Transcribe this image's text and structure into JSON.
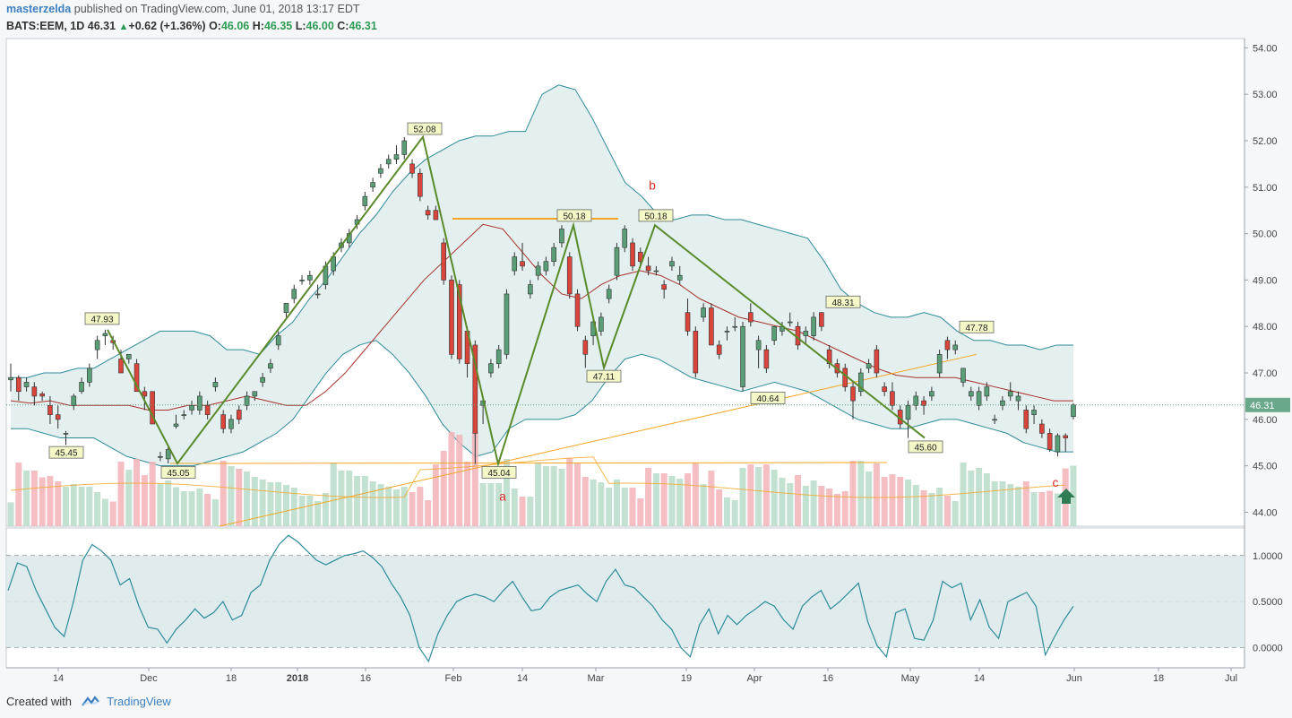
{
  "header": {
    "author": "masterzelda",
    "published": "published on TradingView.com, June 01, 2018 13:17 EDT",
    "symbol": "BATS:EEM, 1D",
    "last": "46.31",
    "change": "+0.62 (+1.36%)",
    "o_label": "O:",
    "o": "46.06",
    "h_label": "H:",
    "h": "46.35",
    "l_label": "L:",
    "l": "46.00",
    "c_label": "C:",
    "c": "46.31"
  },
  "footer": {
    "created": "Created with",
    "brand": "TradingView"
  },
  "colors": {
    "up": "#5a9e78",
    "down": "#d9453b",
    "band": "#2e8c9a",
    "band_fill": "#dbe9ea",
    "basis": "#a8322c",
    "pattern": "#5a8a2a",
    "orange": "#f5a623",
    "vol_up": "#b7dcc9",
    "vol_down": "#f2b3b8",
    "last_tag": "#6aa88a"
  },
  "chart_data": [
    {
      "type": "candlestick",
      "title": "BATS:EEM, 1D",
      "y_axis_ticks": [
        "54.00",
        "53.00",
        "52.00",
        "51.00",
        "50.00",
        "49.00",
        "48.00",
        "47.00",
        "46.00",
        "45.00",
        "44.00"
      ],
      "ylim": [
        43.7,
        54.2
      ],
      "x_axis_ticks": [
        "14",
        "Dec",
        "18",
        "2018",
        "16",
        "Feb",
        "14",
        "Mar",
        "19",
        "Apr",
        "16",
        "May",
        "14",
        "Jun",
        "18",
        "Jul"
      ],
      "last_price_label": "46.31",
      "annotations_price": [
        "47.93",
        "45.45",
        "45.05",
        "52.08",
        "45.04",
        "50.18",
        "47.11",
        "50.18",
        "40.64",
        "48.31",
        "45.60",
        "47.78"
      ],
      "wave_labels": [
        "a",
        "b",
        "c"
      ],
      "ohlc": [
        [
          46.85,
          47.2,
          46.6,
          46.9
        ],
        [
          46.9,
          46.95,
          46.4,
          46.6
        ],
        [
          46.7,
          46.9,
          46.6,
          46.8
        ],
        [
          46.7,
          46.8,
          46.3,
          46.5
        ],
        [
          46.55,
          46.6,
          46.4,
          46.5
        ],
        [
          46.3,
          46.5,
          45.9,
          46.1
        ],
        [
          46.1,
          46.3,
          45.8,
          46.0
        ],
        [
          45.7,
          45.75,
          45.45,
          45.7
        ],
        [
          46.3,
          46.55,
          46.2,
          46.5
        ],
        [
          46.6,
          46.9,
          46.55,
          46.8
        ],
        [
          46.8,
          47.2,
          46.7,
          47.1
        ],
        [
          47.5,
          47.8,
          47.3,
          47.7
        ],
        [
          47.8,
          47.93,
          47.6,
          47.85
        ],
        [
          47.7,
          47.8,
          47.5,
          47.65
        ],
        [
          47.3,
          47.5,
          47.0,
          47.0
        ],
        [
          47.3,
          47.4,
          47.2,
          47.4
        ],
        [
          47.2,
          47.3,
          46.6,
          46.6
        ],
        [
          46.6,
          46.7,
          46.2,
          46.5
        ],
        [
          46.6,
          46.6,
          45.9,
          45.9
        ],
        [
          45.2,
          45.3,
          45.1,
          45.2
        ],
        [
          45.15,
          45.4,
          45.05,
          45.35
        ],
        [
          45.85,
          46.1,
          45.8,
          45.9
        ],
        [
          46.1,
          46.2,
          46.0,
          46.1
        ],
        [
          46.2,
          46.4,
          46.1,
          46.3
        ],
        [
          46.2,
          46.6,
          46.1,
          46.5
        ],
        [
          46.3,
          46.4,
          46.0,
          46.1
        ],
        [
          46.7,
          46.9,
          46.6,
          46.8
        ],
        [
          46.1,
          46.2,
          45.7,
          45.8
        ],
        [
          45.8,
          46.1,
          45.7,
          46.0
        ],
        [
          46.2,
          46.3,
          45.9,
          46.0
        ],
        [
          46.3,
          46.6,
          46.2,
          46.5
        ],
        [
          46.5,
          46.6,
          46.4,
          46.6
        ],
        [
          46.8,
          47.0,
          46.7,
          46.9
        ],
        [
          47.1,
          47.3,
          47.0,
          47.2
        ],
        [
          47.6,
          47.9,
          47.5,
          47.8
        ],
        [
          48.3,
          48.5,
          48.2,
          48.5
        ],
        [
          48.6,
          48.9,
          48.5,
          48.8
        ],
        [
          49.0,
          49.1,
          48.9,
          49.0
        ],
        [
          49.0,
          49.2,
          48.9,
          49.1
        ],
        [
          48.7,
          48.9,
          48.6,
          48.7
        ],
        [
          48.9,
          49.4,
          48.8,
          49.3
        ],
        [
          49.2,
          49.6,
          49.1,
          49.5
        ],
        [
          49.7,
          49.9,
          49.6,
          49.8
        ],
        [
          49.8,
          50.1,
          49.7,
          50.0
        ],
        [
          50.2,
          50.4,
          50.1,
          50.3
        ],
        [
          50.6,
          50.9,
          50.5,
          50.8
        ],
        [
          51.0,
          51.2,
          50.9,
          51.1
        ],
        [
          51.3,
          51.5,
          51.2,
          51.4
        ],
        [
          51.5,
          51.7,
          51.4,
          51.6
        ],
        [
          51.6,
          51.9,
          51.5,
          51.7
        ],
        [
          51.7,
          52.08,
          51.6,
          52.0
        ],
        [
          51.5,
          51.6,
          51.2,
          51.3
        ],
        [
          51.3,
          51.4,
          50.7,
          50.8
        ],
        [
          50.5,
          50.6,
          50.3,
          50.4
        ],
        [
          50.5,
          50.6,
          50.3,
          50.3
        ],
        [
          49.8,
          49.9,
          48.9,
          49.0
        ],
        [
          49.0,
          49.1,
          47.3,
          47.4
        ],
        [
          48.9,
          49.0,
          47.2,
          47.3
        ],
        [
          47.9,
          48.0,
          46.9,
          47.2
        ],
        [
          47.6,
          47.7,
          45.04,
          45.7
        ],
        [
          46.3,
          46.5,
          45.9,
          46.4
        ],
        [
          47.0,
          47.3,
          46.9,
          47.2
        ],
        [
          47.2,
          47.6,
          47.1,
          47.5
        ],
        [
          47.4,
          48.8,
          47.3,
          48.7
        ],
        [
          49.2,
          49.6,
          49.1,
          49.5
        ],
        [
          49.4,
          49.8,
          49.2,
          49.3
        ],
        [
          48.7,
          49.0,
          48.6,
          48.9
        ],
        [
          49.1,
          49.4,
          49.0,
          49.3
        ],
        [
          49.2,
          49.5,
          49.1,
          49.4
        ],
        [
          49.4,
          49.8,
          49.3,
          49.7
        ],
        [
          49.8,
          50.18,
          49.7,
          50.1
        ],
        [
          49.5,
          49.6,
          48.6,
          48.7
        ],
        [
          48.7,
          48.8,
          47.9,
          48.0
        ],
        [
          47.7,
          47.8,
          47.11,
          47.4
        ],
        [
          47.8,
          48.2,
          47.6,
          48.1
        ],
        [
          47.9,
          48.3,
          47.8,
          48.2
        ],
        [
          48.6,
          48.9,
          48.5,
          48.8
        ],
        [
          49.1,
          49.8,
          49.0,
          49.7
        ],
        [
          49.7,
          50.18,
          49.6,
          50.1
        ],
        [
          49.8,
          49.9,
          49.2,
          49.3
        ],
        [
          49.6,
          49.7,
          49.3,
          49.4
        ],
        [
          49.3,
          49.5,
          49.1,
          49.2
        ],
        [
          49.2,
          49.3,
          49.1,
          49.2
        ],
        [
          48.9,
          49.0,
          48.6,
          48.8
        ],
        [
          49.3,
          49.5,
          49.2,
          49.4
        ],
        [
          49.0,
          49.3,
          48.9,
          49.1
        ],
        [
          48.3,
          48.6,
          47.8,
          47.9
        ],
        [
          47.9,
          48.0,
          46.9,
          47.0
        ],
        [
          48.2,
          48.5,
          48.1,
          48.4
        ],
        [
          48.4,
          48.5,
          47.6,
          47.6
        ],
        [
          47.6,
          47.7,
          47.3,
          47.4
        ],
        [
          47.9,
          48.0,
          47.7,
          47.9
        ],
        [
          48.0,
          48.2,
          47.9,
          48.0
        ],
        [
          46.7,
          48.1,
          46.6,
          48.0
        ],
        [
          48.3,
          48.5,
          48.0,
          48.1
        ],
        [
          47.5,
          47.8,
          47.1,
          47.7
        ],
        [
          47.5,
          47.6,
          47.0,
          47.1
        ],
        [
          47.7,
          48.0,
          47.6,
          48.0
        ],
        [
          47.9,
          48.1,
          47.8,
          48.0
        ],
        [
          48.1,
          48.3,
          48.0,
          48.1
        ],
        [
          48.0,
          48.1,
          47.5,
          47.6
        ],
        [
          47.8,
          48.0,
          47.6,
          47.9
        ],
        [
          47.8,
          48.31,
          47.7,
          48.2
        ],
        [
          48.3,
          48.31,
          47.9,
          48.0
        ],
        [
          47.5,
          47.6,
          47.1,
          47.2
        ],
        [
          47.2,
          47.3,
          46.9,
          47.0
        ],
        [
          47.1,
          47.2,
          46.6,
          46.7
        ],
        [
          46.7,
          46.8,
          46.0,
          46.4
        ],
        [
          46.6,
          47.1,
          46.5,
          47.0
        ],
        [
          47.1,
          47.3,
          47.0,
          47.2
        ],
        [
          47.5,
          47.6,
          46.9,
          47.0
        ],
        [
          46.7,
          46.8,
          46.5,
          46.6
        ],
        [
          46.6,
          46.8,
          46.2,
          46.3
        ],
        [
          46.2,
          46.3,
          45.8,
          45.9
        ],
        [
          46.0,
          46.4,
          45.6,
          46.3
        ],
        [
          46.3,
          46.6,
          46.2,
          46.5
        ],
        [
          46.4,
          46.5,
          46.1,
          46.3
        ],
        [
          46.5,
          46.7,
          46.4,
          46.6
        ],
        [
          47.0,
          47.5,
          46.9,
          47.4
        ],
        [
          47.7,
          47.78,
          47.3,
          47.5
        ],
        [
          47.5,
          47.7,
          47.4,
          47.6
        ],
        [
          46.8,
          47.1,
          46.7,
          47.1
        ],
        [
          46.5,
          46.7,
          46.4,
          46.6
        ],
        [
          46.3,
          46.7,
          46.2,
          46.6
        ],
        [
          46.5,
          46.8,
          46.4,
          46.7
        ],
        [
          46.0,
          46.1,
          45.9,
          46.0
        ],
        [
          46.3,
          46.5,
          46.2,
          46.4
        ],
        [
          46.5,
          46.8,
          46.4,
          46.6
        ],
        [
          46.4,
          46.6,
          46.2,
          46.5
        ],
        [
          46.2,
          46.3,
          45.7,
          45.8
        ],
        [
          46.1,
          46.3,
          45.9,
          46.2
        ],
        [
          45.9,
          46.0,
          45.6,
          45.7
        ],
        [
          45.7,
          45.8,
          45.3,
          45.35
        ],
        [
          45.3,
          45.7,
          45.2,
          45.65
        ],
        [
          45.65,
          45.7,
          45.3,
          45.6
        ],
        [
          46.06,
          46.35,
          46.0,
          46.31
        ]
      ],
      "bollinger": {
        "upper": [
          46.9,
          46.9,
          47.0,
          47.0,
          47.1,
          47.1,
          47.3,
          47.5,
          47.7,
          47.9,
          47.9,
          47.9,
          47.8,
          47.5,
          47.5,
          47.4,
          47.8,
          48.1,
          48.6,
          49.0,
          49.5,
          50.0,
          50.4,
          50.9,
          51.3,
          51.6,
          51.8,
          52.0,
          52.1,
          52.1,
          52.2,
          52.2,
          53.0,
          53.2,
          53.1,
          52.5,
          51.8,
          51.1,
          50.8,
          50.4,
          50.3,
          50.4,
          50.4,
          50.3,
          50.3,
          50.2,
          50.1,
          50.0,
          49.9,
          49.4,
          48.8,
          48.5,
          48.3,
          48.2,
          48.2,
          48.3,
          48.2,
          47.9,
          47.7,
          47.7,
          47.6,
          47.6,
          47.5,
          47.6,
          47.6
        ],
        "lower": [
          45.8,
          45.8,
          45.7,
          45.6,
          45.6,
          45.6,
          45.4,
          45.2,
          45.1,
          45.0,
          45.0,
          45.0,
          45.1,
          45.2,
          45.3,
          45.5,
          45.7,
          46.0,
          46.5,
          47.0,
          47.4,
          47.6,
          47.7,
          47.4,
          47.0,
          46.5,
          45.9,
          45.5,
          45.2,
          45.3,
          45.8,
          46.0,
          46.0,
          46.0,
          46.1,
          46.4,
          46.9,
          47.3,
          47.4,
          47.3,
          47.1,
          46.9,
          46.8,
          46.7,
          46.6,
          46.7,
          46.8,
          46.7,
          46.6,
          46.4,
          46.2,
          46.0,
          45.9,
          45.8,
          45.8,
          45.9,
          46.0,
          46.0,
          45.9,
          45.8,
          45.7,
          45.5,
          45.4,
          45.3,
          45.3
        ],
        "basis": [
          46.4,
          46.35,
          46.4,
          46.3,
          46.3,
          46.3,
          46.3,
          46.2,
          46.2,
          46.3,
          46.3,
          46.4,
          46.5,
          46.4,
          46.3,
          46.3,
          46.6,
          47.0,
          47.5,
          48.0,
          48.5,
          49.0,
          49.4,
          49.8,
          50.2,
          50.1,
          49.6,
          49.1,
          48.7,
          48.6,
          48.9,
          49.1,
          49.2,
          49.1,
          48.9,
          48.6,
          48.4,
          48.2,
          48.1,
          48.0,
          47.9,
          47.7,
          47.5,
          47.3,
          47.1,
          46.95,
          46.9,
          46.9,
          46.9,
          46.8,
          46.7,
          46.6,
          46.5,
          46.4,
          46.4
        ]
      },
      "volume_series": [
        "up",
        "down"
      ]
    },
    {
      "type": "line",
      "title": "",
      "y_axis_ticks": [
        "1.0000",
        "0.5000",
        "0.0000"
      ],
      "ylim": [
        -0.22,
        1.3
      ],
      "values": [
        0.62,
        0.92,
        0.88,
        0.62,
        0.42,
        0.22,
        0.12,
        0.5,
        0.95,
        1.12,
        1.05,
        0.95,
        0.68,
        0.75,
        0.45,
        0.22,
        0.2,
        0.05,
        0.2,
        0.3,
        0.42,
        0.32,
        0.38,
        0.5,
        0.3,
        0.35,
        0.6,
        0.68,
        0.95,
        1.12,
        1.22,
        1.15,
        1.05,
        0.95,
        0.9,
        0.95,
        1.0,
        1.02,
        1.05,
        0.98,
        0.88,
        0.7,
        0.55,
        0.35,
        0.0,
        -0.15,
        0.15,
        0.35,
        0.5,
        0.55,
        0.58,
        0.55,
        0.5,
        0.62,
        0.72,
        0.55,
        0.4,
        0.42,
        0.55,
        0.62,
        0.65,
        0.68,
        0.58,
        0.5,
        0.72,
        0.85,
        0.68,
        0.65,
        0.55,
        0.45,
        0.3,
        0.2,
        0.0,
        -0.1,
        0.25,
        0.42,
        0.15,
        0.35,
        0.25,
        0.35,
        0.42,
        0.5,
        0.45,
        0.3,
        0.2,
        0.45,
        0.55,
        0.62,
        0.42,
        0.5,
        0.6,
        0.7,
        0.28,
        0.02,
        -0.1,
        0.38,
        0.42,
        0.1,
        0.08,
        0.3,
        0.72,
        0.65,
        0.7,
        0.3,
        0.52,
        0.22,
        0.1,
        0.5,
        0.55,
        0.6,
        0.45,
        -0.08,
        0.12,
        0.3,
        0.45
      ]
    }
  ]
}
